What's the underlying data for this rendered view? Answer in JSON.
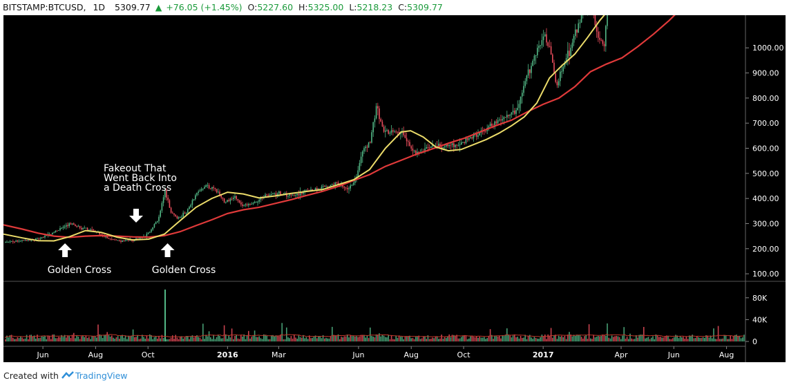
{
  "header": {
    "symbol": "BITSTAMP:BTCUSD,",
    "interval": "1D",
    "last": "5309.77",
    "change_arrow": "▲",
    "change": "+76.05 (+1.45%)",
    "open_label": "O:",
    "open": "5227.60",
    "high_label": "H:",
    "high": "5325.00",
    "low_label": "L:",
    "low": "5218.23",
    "close_label": "C:",
    "close": "5309.77"
  },
  "footer": {
    "created_with": "Created with",
    "brand": "TradingView",
    "brand_icon": "tradingview-logo-icon"
  },
  "colors": {
    "background": "#000000",
    "up": "#53b987",
    "down": "#eb4d5c",
    "ma_fast": "#ecdc6a",
    "ma_slow": "#e03a3a",
    "annotation": "#ffffff"
  },
  "annotations": [
    {
      "text": "Golden Cross",
      "arrow": "up"
    },
    {
      "text": "Golden Cross",
      "arrow": "up"
    },
    {
      "text": "Fakeout That\nWent Back Into\na Death Cross",
      "arrow": "down"
    }
  ],
  "chart_data": {
    "type": "line",
    "title": "",
    "price_axis": {
      "ticks": [
        "100.00",
        "200.00",
        "300.00",
        "400.00",
        "500.00",
        "600.00",
        "700.00",
        "800.00",
        "900.00",
        "1000.00"
      ],
      "ylim": [
        70,
        1130
      ]
    },
    "volume_axis": {
      "ticks": [
        "0",
        "40K",
        "80K"
      ],
      "ylim": [
        0,
        100000
      ]
    },
    "x_ticks": [
      "Jun",
      "Aug",
      "Oct",
      "2016",
      "Mar",
      "Jun",
      "Aug",
      "Oct",
      "2017",
      "Apr",
      "Jun",
      "Aug"
    ],
    "x_tick_values": [
      2015.415,
      2015.582,
      2015.748,
      2016.0,
      2016.162,
      2016.415,
      2016.582,
      2016.748,
      2017.0,
      2017.247,
      2017.414,
      2017.581
    ],
    "xlim": [
      2015.29,
      2017.641
    ],
    "grid": false,
    "series": [
      {
        "role": "price",
        "x": [
          2015.29,
          2015.34,
          2015.4,
          2015.44,
          2015.5,
          2015.54,
          2015.58,
          2015.62,
          2015.66,
          2015.7,
          2015.74,
          2015.78,
          2015.8,
          2015.82,
          2015.84,
          2015.87,
          2015.9,
          2015.93,
          2015.96,
          2015.99,
          2016.02,
          2016.05,
          2016.08,
          2016.12,
          2016.16,
          2016.2,
          2016.25,
          2016.3,
          2016.35,
          2016.38,
          2016.4,
          2016.43,
          2016.45,
          2016.47,
          2016.49,
          2016.51,
          2016.53,
          2016.55,
          2016.57,
          2016.59,
          2016.61,
          2016.63,
          2016.66,
          2016.7,
          2016.74,
          2016.78,
          2016.82,
          2016.86,
          2016.89,
          2016.92,
          2016.95,
          2016.98,
          2017.0,
          2017.02,
          2017.04,
          2017.07,
          2017.09,
          2017.11,
          2017.13,
          2017.15,
          2017.17,
          2017.19,
          2017.21,
          2017.23,
          2017.25
        ],
        "y": [
          225,
          230,
          240,
          260,
          300,
          280,
          270,
          240,
          230,
          235,
          250,
          320,
          430,
          345,
          320,
          350,
          420,
          450,
          435,
          385,
          405,
          370,
          380,
          415,
          420,
          410,
          430,
          445,
          460,
          440,
          460,
          600,
          620,
          770,
          680,
          660,
          670,
          660,
          620,
          590,
          580,
          600,
          610,
          610,
          620,
          650,
          680,
          710,
          730,
          760,
          900,
          1000,
          1050,
          1000,
          850,
          950,
          1020,
          1100,
          1150,
          1200,
          1050,
          1000,
          1250,
          1200,
          1280
        ]
      },
      {
        "role": "ma_fast",
        "x": [
          2015.29,
          2015.35,
          2015.4,
          2015.45,
          2015.5,
          2015.55,
          2015.6,
          2015.65,
          2015.7,
          2015.75,
          2015.8,
          2015.85,
          2015.9,
          2015.95,
          2016.0,
          2016.05,
          2016.1,
          2016.15,
          2016.2,
          2016.25,
          2016.3,
          2016.35,
          2016.4,
          2016.45,
          2016.5,
          2016.55,
          2016.58,
          2016.62,
          2016.66,
          2016.7,
          2016.74,
          2016.78,
          2016.82,
          2016.86,
          2016.9,
          2016.94,
          2016.98,
          2017.02,
          2017.06,
          2017.1,
          2017.14,
          2017.18,
          2017.22,
          2017.25
        ],
        "y": [
          258,
          243,
          232,
          231,
          248,
          272,
          265,
          246,
          235,
          238,
          258,
          312,
          365,
          400,
          425,
          418,
          402,
          410,
          420,
          428,
          435,
          455,
          475,
          515,
          600,
          665,
          670,
          645,
          605,
          590,
          595,
          615,
          635,
          660,
          690,
          725,
          780,
          880,
          930,
          975,
          1040,
          1110,
          1170,
          1200
        ]
      },
      {
        "role": "ma_slow",
        "x": [
          2015.29,
          2015.35,
          2015.4,
          2015.45,
          2015.5,
          2015.55,
          2015.6,
          2015.65,
          2015.7,
          2015.75,
          2015.8,
          2015.85,
          2015.9,
          2015.95,
          2016.0,
          2016.05,
          2016.1,
          2016.15,
          2016.2,
          2016.25,
          2016.3,
          2016.35,
          2016.4,
          2016.45,
          2016.5,
          2016.55,
          2016.6,
          2016.65,
          2016.7,
          2016.75,
          2016.8,
          2016.85,
          2016.9,
          2016.95,
          2017.0,
          2017.05,
          2017.1,
          2017.15,
          2017.2,
          2017.25,
          2017.3,
          2017.35,
          2017.4,
          2017.44
        ],
        "y": [
          295,
          278,
          262,
          250,
          245,
          250,
          252,
          250,
          247,
          246,
          252,
          268,
          292,
          315,
          340,
          355,
          365,
          380,
          395,
          412,
          428,
          448,
          472,
          495,
          528,
          552,
          577,
          598,
          620,
          640,
          665,
          690,
          712,
          745,
          775,
          800,
          845,
          905,
          935,
          960,
          1005,
          1055,
          1110,
          1160
        ]
      }
    ]
  }
}
